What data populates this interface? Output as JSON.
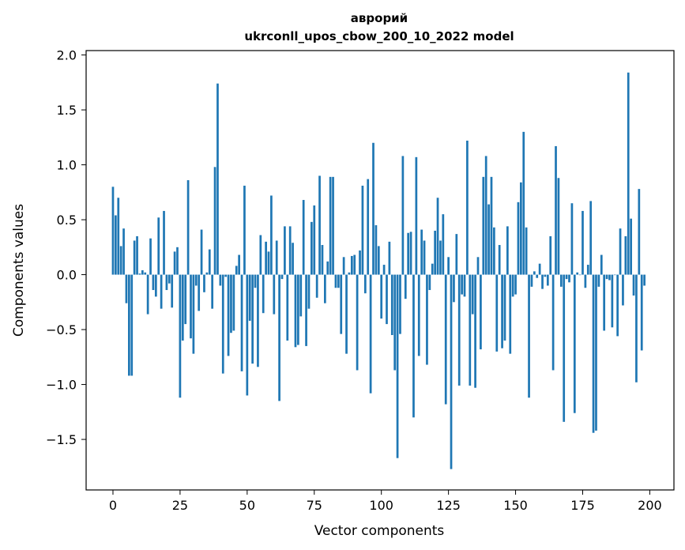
{
  "chart_data": {
    "type": "bar",
    "title_line1": "аврорий",
    "title_line2": "ukrconll_upos_cbow_200_10_2022 model",
    "xlabel": "Vector components",
    "ylabel": "Components values",
    "xlim": [
      -10,
      209
    ],
    "ylim": [
      -1.96,
      2.04
    ],
    "xticks": [
      0,
      25,
      50,
      75,
      100,
      125,
      150,
      175,
      200
    ],
    "yticks": [
      -1.5,
      -1.0,
      -0.5,
      0.0,
      0.5,
      1.0,
      1.5,
      2.0
    ],
    "ytick_labels": [
      "−1.5",
      "−1.0",
      "−0.5",
      "0.0",
      "0.5",
      "1.0",
      "1.5",
      "2.0"
    ],
    "bar_color": "#1f77b4",
    "grid": false,
    "values": [
      0.8,
      0.54,
      0.7,
      0.26,
      0.42,
      -0.26,
      -0.92,
      -0.92,
      0.31,
      0.35,
      0.01,
      0.04,
      0.02,
      -0.36,
      0.33,
      -0.14,
      -0.2,
      0.52,
      -0.31,
      0.58,
      -0.14,
      -0.08,
      -0.3,
      0.21,
      0.25,
      -1.12,
      -0.6,
      -0.45,
      0.86,
      -0.58,
      -0.72,
      -0.1,
      -0.33,
      0.41,
      -0.16,
      0.02,
      0.23,
      -0.31,
      0.98,
      1.74,
      -0.1,
      -0.9,
      -0.02,
      -0.74,
      -0.53,
      -0.51,
      0.08,
      0.18,
      -0.88,
      0.81,
      -1.1,
      -0.42,
      -0.81,
      -0.12,
      -0.84,
      0.36,
      -0.35,
      0.3,
      0.21,
      0.72,
      -0.36,
      0.31,
      -1.15,
      -0.04,
      0.44,
      -0.6,
      0.44,
      0.29,
      -0.66,
      -0.64,
      -0.38,
      0.68,
      -0.65,
      -0.31,
      0.48,
      0.63,
      -0.21,
      0.9,
      0.27,
      -0.26,
      0.12,
      0.89,
      0.89,
      -0.12,
      -0.12,
      -0.54,
      0.16,
      -0.72,
      0.02,
      0.17,
      0.18,
      -0.87,
      0.22,
      0.81,
      -0.17,
      0.87,
      -1.08,
      1.2,
      0.45,
      0.26,
      -0.4,
      0.09,
      -0.45,
      0.3,
      -0.55,
      -0.87,
      -1.67,
      -0.54,
      1.08,
      -0.22,
      0.38,
      0.39,
      -1.3,
      1.07,
      -0.74,
      0.41,
      0.31,
      -0.82,
      -0.14,
      0.1,
      0.4,
      0.7,
      0.31,
      0.55,
      -1.18,
      0.16,
      -1.77,
      -0.25,
      0.37,
      -1.01,
      -0.18,
      -0.2,
      1.22,
      -1.01,
      -0.36,
      -1.03,
      0.16,
      -0.68,
      0.89,
      1.08,
      0.64,
      0.89,
      0.43,
      -0.7,
      0.27,
      -0.67,
      -0.6,
      0.44,
      -0.72,
      -0.2,
      -0.18,
      0.66,
      0.84,
      1.3,
      0.43,
      -1.12,
      -0.11,
      0.03,
      -0.03,
      0.1,
      -0.13,
      -0.02,
      -0.1,
      0.35,
      -0.87,
      1.17,
      0.88,
      -0.11,
      -1.34,
      -0.04,
      -0.07,
      0.65,
      -1.26,
      0.02,
      0.0,
      0.58,
      -0.12,
      0.09,
      0.67,
      -1.44,
      -1.42,
      -0.11,
      0.18,
      -0.51,
      -0.04,
      -0.05,
      -0.48,
      0.0,
      -0.56,
      0.42,
      -0.28,
      0.35,
      1.84,
      0.51,
      -0.19,
      -0.98,
      0.78,
      -0.69,
      -0.1
    ]
  }
}
